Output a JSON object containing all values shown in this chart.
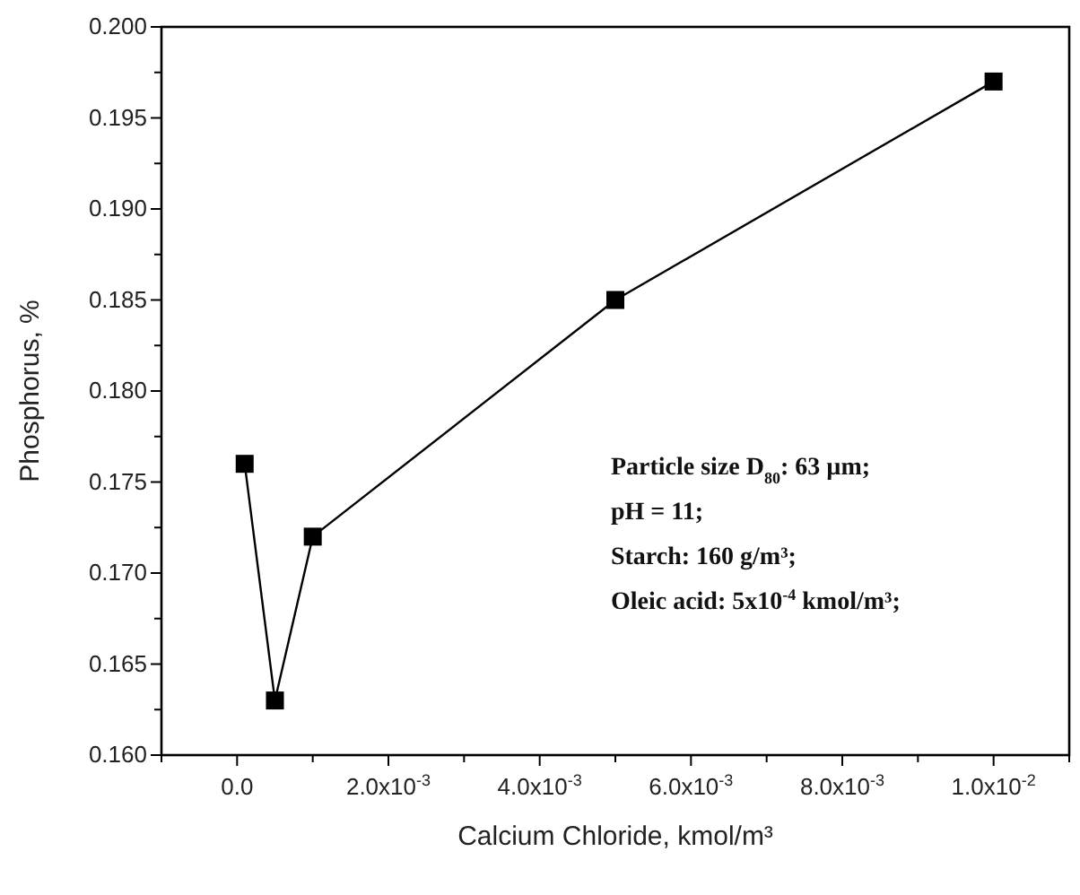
{
  "chart_data": {
    "type": "line",
    "xlabel": "Calcium Chloride, kmol/m³",
    "ylabel": "Phosphorus, %",
    "x": [
      0.0001,
      0.0005,
      0.001,
      0.005,
      0.01
    ],
    "series": [
      {
        "color": "#000000",
        "values": [
          0.176,
          0.163,
          0.172,
          0.185,
          0.197
        ]
      }
    ],
    "xlim": [
      -0.001,
      0.011
    ],
    "xticks": [
      {
        "value": -0.001,
        "label": null
      },
      {
        "value": 0,
        "label": "0.0"
      },
      {
        "value": 0.001,
        "label": null
      },
      {
        "value": 0.002,
        "label": "2.0x10$^{-3}$"
      },
      {
        "value": 0.003,
        "label": null
      },
      {
        "value": 0.004,
        "label": "4.0x10$^{-3}$"
      },
      {
        "value": 0.005,
        "label": null
      },
      {
        "value": 0.006,
        "label": "6.0x10$^{-3}$"
      },
      {
        "value": 0.007,
        "label": null
      },
      {
        "value": 0.008,
        "label": "8.0x10$^{-3}$"
      },
      {
        "value": 0.009,
        "label": null
      },
      {
        "value": 0.01,
        "label": "1.0x10$^{-2}$"
      },
      {
        "value": 0.011,
        "label": null
      }
    ],
    "ylim": [
      0.16,
      0.2
    ],
    "yticks": [
      {
        "value": 0.16,
        "label": "0.160"
      },
      {
        "value": 0.1625,
        "label": null
      },
      {
        "value": 0.165,
        "label": "0.165"
      },
      {
        "value": 0.1675,
        "label": null
      },
      {
        "value": 0.17,
        "label": "0.170"
      },
      {
        "value": 0.1725,
        "label": null
      },
      {
        "value": 0.175,
        "label": "0.175"
      },
      {
        "value": 0.1775,
        "label": null
      },
      {
        "value": 0.18,
        "label": "0.180"
      },
      {
        "value": 0.1825,
        "label": null
      },
      {
        "value": 0.185,
        "label": "0.185"
      },
      {
        "value": 0.1875,
        "label": null
      },
      {
        "value": 0.19,
        "label": "0.190"
      },
      {
        "value": 0.1925,
        "label": null
      },
      {
        "value": 0.195,
        "label": "0.195"
      },
      {
        "value": 0.1975,
        "label": null
      },
      {
        "value": 0.2,
        "label": "0.200"
      }
    ],
    "annotations": [
      "Particle size D$_{80}$: 63 µm;",
      "pH = 11;",
      "Starch: 160 g/m³;",
      "Oleic acid: 5x10$^{-4}$ kmol/m³;"
    ],
    "marker": "square",
    "line_style": "solid"
  }
}
